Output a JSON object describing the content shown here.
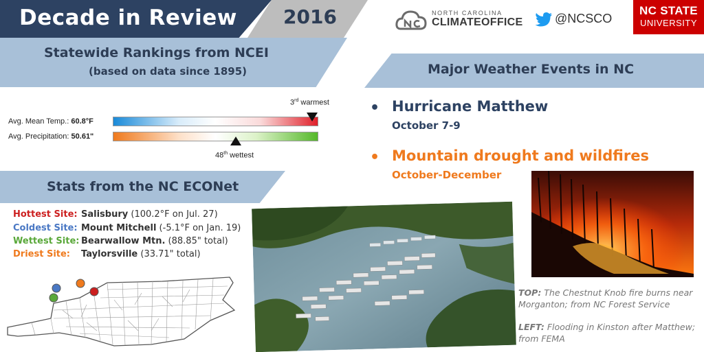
{
  "header": {
    "title": "Decade in Review",
    "year": "2016",
    "logo_top": "NORTH CAROLINA",
    "logo_main": "CLIMATEOFFICE",
    "twitter_handle": "@NCSCO",
    "ncsu_line1": "NC STATE",
    "ncsu_line2": "UNIVERSITY",
    "colors": {
      "navy": "#2d4262",
      "band": "#a8c0d8",
      "grey": "#bdbdbd",
      "ncsu_red": "#cc0000"
    }
  },
  "rankings": {
    "title": "Statewide Rankings from NCEI",
    "subtitle": "(based on data since 1895)",
    "temp": {
      "label": "Avg. Mean Temp.:",
      "value": "60.8°F",
      "rank_num": "3",
      "rank_suffix": "rd",
      "rank_word": " warmest",
      "position_fraction": 0.97
    },
    "precip": {
      "label": "Avg. Precipitation:",
      "value": "50.61\"",
      "rank_num": "48",
      "rank_suffix": "th",
      "rank_word": " wettest",
      "position_fraction": 0.6
    }
  },
  "stats": {
    "title": "Stats from the NC ECONet",
    "rows": [
      {
        "label": "Hottest Site:",
        "site": "Salisbury",
        "value": " (100.2°F on Jul. 27)",
        "color": "#cc1f1f"
      },
      {
        "label": "Coldest Site:",
        "site": "Mount Mitchell",
        "value": " (-5.1°F on Jan. 19)",
        "color": "#4a78c4"
      },
      {
        "label": "Wettest Site:",
        "site": "Bearwallow Mtn.",
        "value": " (88.85\" total)",
        "color": "#5aa83a"
      },
      {
        "label": "Driest Site:",
        "site": "Taylorsville",
        "value": " (33.71\" total)",
        "color": "#ef7a1e"
      }
    ]
  },
  "events": {
    "title": "Major Weather Events in NC",
    "items": [
      {
        "title": "Hurricane Matthew",
        "date": "October 7-9",
        "color": "#2d4262"
      },
      {
        "title": "Mountain drought and wildfires",
        "date": "October-December",
        "color": "#ef7a1e"
      }
    ]
  },
  "captions": {
    "top_label": "TOP:",
    "top_text": " The Chestnut Knob fire burns near Morganton; from NC Forest Service",
    "left_label": "LEFT:",
    "left_text": " Flooding in Kinston after Matthew; from FEMA"
  }
}
